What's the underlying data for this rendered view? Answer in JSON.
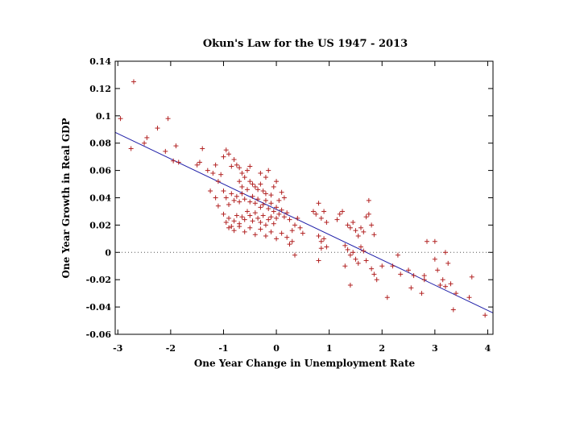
{
  "chart_data": {
    "type": "scatter",
    "title": "Okun's Law for the US 1947 - 2013",
    "xlabel": "One Year Change in Unemployment Rate",
    "ylabel": "One Year Growth in Real GDP",
    "xlim": [
      -3.05,
      4.1
    ],
    "ylim": [
      -0.06,
      0.14
    ],
    "x_ticks": [
      -3,
      -2,
      -1,
      0,
      1,
      2,
      3,
      4
    ],
    "x_tick_labels": [
      "-3",
      "-2",
      "-1",
      "0",
      "1",
      "2",
      "3",
      "4"
    ],
    "y_ticks": [
      -0.06,
      -0.04,
      -0.02,
      0,
      0.02,
      0.04,
      0.06,
      0.08,
      0.1,
      0.12,
      0.14
    ],
    "y_tick_labels": [
      "-0.06",
      "-0.04",
      "-0.02",
      "0",
      "0.02",
      "0.04",
      "0.06",
      "0.08",
      "0.1",
      "0.12",
      "0.14"
    ],
    "zero_line": true,
    "grid": false,
    "marker": "+",
    "colors": {
      "points": "#b22222",
      "fit_line": "#1f1fa8",
      "zero_line": "#555555",
      "axes": "#000000"
    },
    "fit_line": {
      "slope": -0.0185,
      "intercept": 0.0315
    },
    "points": [
      [
        -2.95,
        0.098
      ],
      [
        -2.7,
        0.125
      ],
      [
        -2.75,
        0.076
      ],
      [
        -2.5,
        0.08
      ],
      [
        -2.45,
        0.084
      ],
      [
        -2.25,
        0.091
      ],
      [
        -2.1,
        0.074
      ],
      [
        -2.05,
        0.098
      ],
      [
        -1.95,
        0.067
      ],
      [
        -1.85,
        0.066
      ],
      [
        -1.9,
        0.078
      ],
      [
        -1.45,
        0.066
      ],
      [
        -1.5,
        0.064
      ],
      [
        -1.4,
        0.076
      ],
      [
        -1.3,
        0.06
      ],
      [
        -1.2,
        0.058
      ],
      [
        -1.15,
        0.064
      ],
      [
        -1.1,
        0.052
      ],
      [
        -1.05,
        0.057
      ],
      [
        -1.0,
        0.07
      ],
      [
        -0.95,
        0.075
      ],
      [
        -0.9,
        0.072
      ],
      [
        -0.85,
        0.063
      ],
      [
        -0.8,
        0.068
      ],
      [
        -0.75,
        0.064
      ],
      [
        -0.7,
        0.062
      ],
      [
        -0.65,
        0.058
      ],
      [
        -0.6,
        0.055
      ],
      [
        -0.55,
        0.06
      ],
      [
        -0.5,
        0.052
      ],
      [
        -0.45,
        0.05
      ],
      [
        -0.4,
        0.048
      ],
      [
        -0.35,
        0.046
      ],
      [
        -0.3,
        0.05
      ],
      [
        -0.25,
        0.045
      ],
      [
        -0.2,
        0.043
      ],
      [
        -0.15,
        0.06
      ],
      [
        -0.1,
        0.042
      ],
      [
        -0.05,
        0.048
      ],
      [
        0.0,
        0.052
      ],
      [
        0.05,
        0.038
      ],
      [
        0.1,
        0.044
      ],
      [
        0.15,
        0.04
      ],
      [
        -1.15,
        0.04
      ],
      [
        -1.1,
        0.034
      ],
      [
        -1.0,
        0.045
      ],
      [
        -0.95,
        0.04
      ],
      [
        -0.9,
        0.035
      ],
      [
        -0.85,
        0.043
      ],
      [
        -0.8,
        0.038
      ],
      [
        -0.75,
        0.041
      ],
      [
        -0.7,
        0.037
      ],
      [
        -0.65,
        0.043
      ],
      [
        -0.6,
        0.039
      ],
      [
        -0.55,
        0.046
      ],
      [
        -0.5,
        0.037
      ],
      [
        -0.45,
        0.041
      ],
      [
        -0.4,
        0.036
      ],
      [
        -0.35,
        0.039
      ],
      [
        -0.3,
        0.033
      ],
      [
        -0.25,
        0.035
      ],
      [
        -0.2,
        0.038
      ],
      [
        -0.15,
        0.032
      ],
      [
        -0.1,
        0.036
      ],
      [
        -0.05,
        0.03
      ],
      [
        0.0,
        0.033
      ],
      [
        0.05,
        0.028
      ],
      [
        0.1,
        0.031
      ],
      [
        0.15,
        0.026
      ],
      [
        0.2,
        0.029
      ],
      [
        0.25,
        0.024
      ],
      [
        -1.0,
        0.028
      ],
      [
        -0.95,
        0.022
      ],
      [
        -0.9,
        0.025
      ],
      [
        -0.85,
        0.019
      ],
      [
        -0.8,
        0.023
      ],
      [
        -0.75,
        0.027
      ],
      [
        -0.7,
        0.021
      ],
      [
        -0.65,
        0.026
      ],
      [
        -0.6,
        0.024
      ],
      [
        -0.55,
        0.03
      ],
      [
        -0.5,
        0.027
      ],
      [
        -0.45,
        0.023
      ],
      [
        -0.4,
        0.029
      ],
      [
        -0.35,
        0.025
      ],
      [
        -0.3,
        0.022
      ],
      [
        -0.25,
        0.027
      ],
      [
        -0.2,
        0.02
      ],
      [
        -0.15,
        0.024
      ],
      [
        -0.1,
        0.026
      ],
      [
        -0.05,
        0.021
      ],
      [
        0.0,
        0.025
      ],
      [
        -0.9,
        0.018
      ],
      [
        -0.8,
        0.016
      ],
      [
        -0.7,
        0.019
      ],
      [
        -0.6,
        0.015
      ],
      [
        -0.5,
        0.018
      ],
      [
        -0.4,
        0.013
      ],
      [
        -0.3,
        0.017
      ],
      [
        -0.2,
        0.012
      ],
      [
        -0.1,
        0.015
      ],
      [
        0.0,
        0.01
      ],
      [
        0.1,
        0.014
      ],
      [
        0.2,
        0.011
      ],
      [
        0.3,
        0.016
      ],
      [
        0.35,
        0.02
      ],
      [
        0.4,
        0.025
      ],
      [
        0.45,
        0.018
      ],
      [
        0.5,
        0.014
      ],
      [
        0.25,
        0.006
      ],
      [
        0.3,
        0.008
      ],
      [
        0.35,
        -0.002
      ],
      [
        -0.2,
        0.055
      ],
      [
        -0.3,
        0.058
      ],
      [
        -0.5,
        0.063
      ],
      [
        -0.65,
        0.048
      ],
      [
        -0.7,
        0.052
      ],
      [
        -1.25,
        0.045
      ],
      [
        0.7,
        0.03
      ],
      [
        0.75,
        0.028
      ],
      [
        0.8,
        0.036
      ],
      [
        0.85,
        0.025
      ],
      [
        0.9,
        0.03
      ],
      [
        0.95,
        0.022
      ],
      [
        0.8,
        0.012
      ],
      [
        0.85,
        0.008
      ],
      [
        0.9,
        0.01
      ],
      [
        0.95,
        0.004
      ],
      [
        0.85,
        0.003
      ],
      [
        0.8,
        -0.006
      ],
      [
        1.15,
        0.024
      ],
      [
        1.2,
        0.028
      ],
      [
        1.25,
        0.03
      ],
      [
        1.35,
        0.02
      ],
      [
        1.4,
        0.018
      ],
      [
        1.45,
        0.022
      ],
      [
        1.5,
        0.016
      ],
      [
        1.55,
        0.012
      ],
      [
        1.6,
        0.018
      ],
      [
        1.65,
        0.015
      ],
      [
        1.7,
        0.026
      ],
      [
        1.75,
        0.028
      ],
      [
        1.8,
        0.02
      ],
      [
        1.85,
        0.013
      ],
      [
        1.75,
        0.038
      ],
      [
        1.3,
        0.005
      ],
      [
        1.35,
        0.002
      ],
      [
        1.4,
        -0.002
      ],
      [
        1.45,
        0.0
      ],
      [
        1.5,
        -0.005
      ],
      [
        1.3,
        -0.01
      ],
      [
        1.55,
        -0.008
      ],
      [
        1.6,
        0.004
      ],
      [
        1.65,
        0.001
      ],
      [
        1.7,
        -0.006
      ],
      [
        1.8,
        -0.012
      ],
      [
        1.85,
        -0.016
      ],
      [
        1.9,
        -0.02
      ],
      [
        1.4,
        -0.024
      ],
      [
        2.0,
        -0.01
      ],
      [
        2.1,
        -0.033
      ],
      [
        2.2,
        -0.01
      ],
      [
        2.3,
        -0.002
      ],
      [
        2.35,
        -0.016
      ],
      [
        2.5,
        -0.013
      ],
      [
        2.55,
        -0.026
      ],
      [
        2.6,
        -0.017
      ],
      [
        2.75,
        -0.03
      ],
      [
        2.8,
        -0.017
      ],
      [
        2.85,
        0.008
      ],
      [
        3.0,
        -0.005
      ],
      [
        3.05,
        -0.013
      ],
      [
        3.1,
        -0.024
      ],
      [
        3.15,
        -0.02
      ],
      [
        3.2,
        0.0
      ],
      [
        3.25,
        -0.008
      ],
      [
        3.3,
        -0.023
      ],
      [
        3.35,
        -0.042
      ],
      [
        3.4,
        -0.03
      ],
      [
        3.7,
        -0.018
      ],
      [
        3.65,
        -0.033
      ],
      [
        3.95,
        -0.046
      ],
      [
        3.0,
        0.008
      ],
      [
        3.2,
        -0.025
      ],
      [
        2.8,
        -0.02
      ]
    ]
  }
}
